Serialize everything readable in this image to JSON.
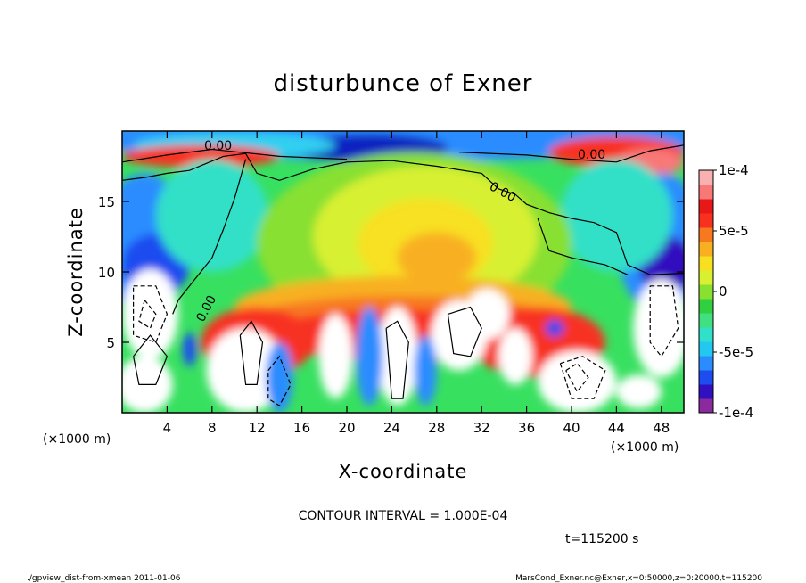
{
  "chart_data": {
    "type": "heatmap",
    "title": "disturbunce of Exner",
    "xlabel": "X-coordinate",
    "ylabel": "Z-coordinate",
    "x_unit": "(×1000 m)",
    "y_unit": "(×1000 m)",
    "xlim": [
      0,
      50
    ],
    "ylim": [
      0,
      20
    ],
    "x_ticks": [
      4,
      8,
      12,
      16,
      20,
      24,
      28,
      32,
      36,
      40,
      44,
      48
    ],
    "y_ticks": [
      5,
      10,
      15
    ],
    "colorbar": {
      "min": -0.0001,
      "max": 0.0001,
      "tick_labels": [
        "1e-4",
        "5e-5",
        "0",
        "-5e-5",
        "-1e-4"
      ],
      "tick_values": [
        0.0001,
        5e-05,
        0,
        -5e-05,
        -0.0001
      ],
      "colors": [
        "#8a2a9e",
        "#3010c0",
        "#1e4cf0",
        "#2a8cff",
        "#22c8f0",
        "#30e0c8",
        "#40e080",
        "#30d040",
        "#88e030",
        "#d8f030",
        "#f8e020",
        "#f8b020",
        "#f87820",
        "#f83020",
        "#e81818",
        "#f87878",
        "#f8b0b0"
      ]
    },
    "contour_labels": [
      "0.00",
      "0.00",
      "0.00",
      "0.00"
    ],
    "contour_interval_text": "CONTOUR INTERVAL = 1.000E-04",
    "time_text": "t=115200 s"
  },
  "footer": {
    "left": "./gpview_dist-from-xmean  2011-01-06",
    "right": "MarsCond_Exner.nc@Exner,x=0:50000,z=0:20000,t=115200"
  }
}
